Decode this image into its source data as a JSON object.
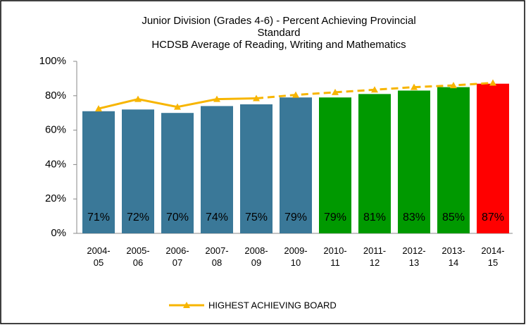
{
  "chart_data": {
    "type": "bar",
    "title_lines": [
      "Junior Division (Grades 4-6) - Percent Achieving Provincial",
      "Standard",
      "HCDSB Average of Reading, Writing and Mathematics"
    ],
    "categories": [
      "2004-05",
      "2005-06",
      "2006-07",
      "2007-08",
      "2008-09",
      "2009-10",
      "2010-11",
      "2011-12",
      "2012-13",
      "2013-14",
      "2014-15"
    ],
    "values": [
      71,
      72,
      70,
      74,
      75,
      79,
      79,
      81,
      83,
      85,
      87
    ],
    "value_labels": [
      "71%",
      "72%",
      "70%",
      "74%",
      "75%",
      "79%",
      "79%",
      "81%",
      "83%",
      "85%",
      "87%"
    ],
    "colors": [
      "#3a7898",
      "#3a7898",
      "#3a7898",
      "#3a7898",
      "#3a7898",
      "#3a7898",
      "#009900",
      "#009900",
      "#009900",
      "#009900",
      "#ff0000"
    ],
    "series": [
      {
        "name": "HIGHEST ACHIEVING BOARD",
        "type": "line",
        "color": "#f7b500",
        "dash_start": 4,
        "values": [
          72.5,
          78,
          73.5,
          78,
          78.5,
          80.5,
          82,
          83.5,
          85,
          86,
          87.5
        ]
      }
    ],
    "ylim": [
      0,
      100
    ],
    "yticks": [
      {
        "value": 0,
        "label": "0%"
      },
      {
        "value": 20,
        "label": "20%"
      },
      {
        "value": 40,
        "label": "40%"
      },
      {
        "value": 60,
        "label": "60%"
      },
      {
        "value": 80,
        "label": "80%"
      },
      {
        "value": 100,
        "label": "100%"
      }
    ],
    "grid": false,
    "legend": "bottom"
  }
}
